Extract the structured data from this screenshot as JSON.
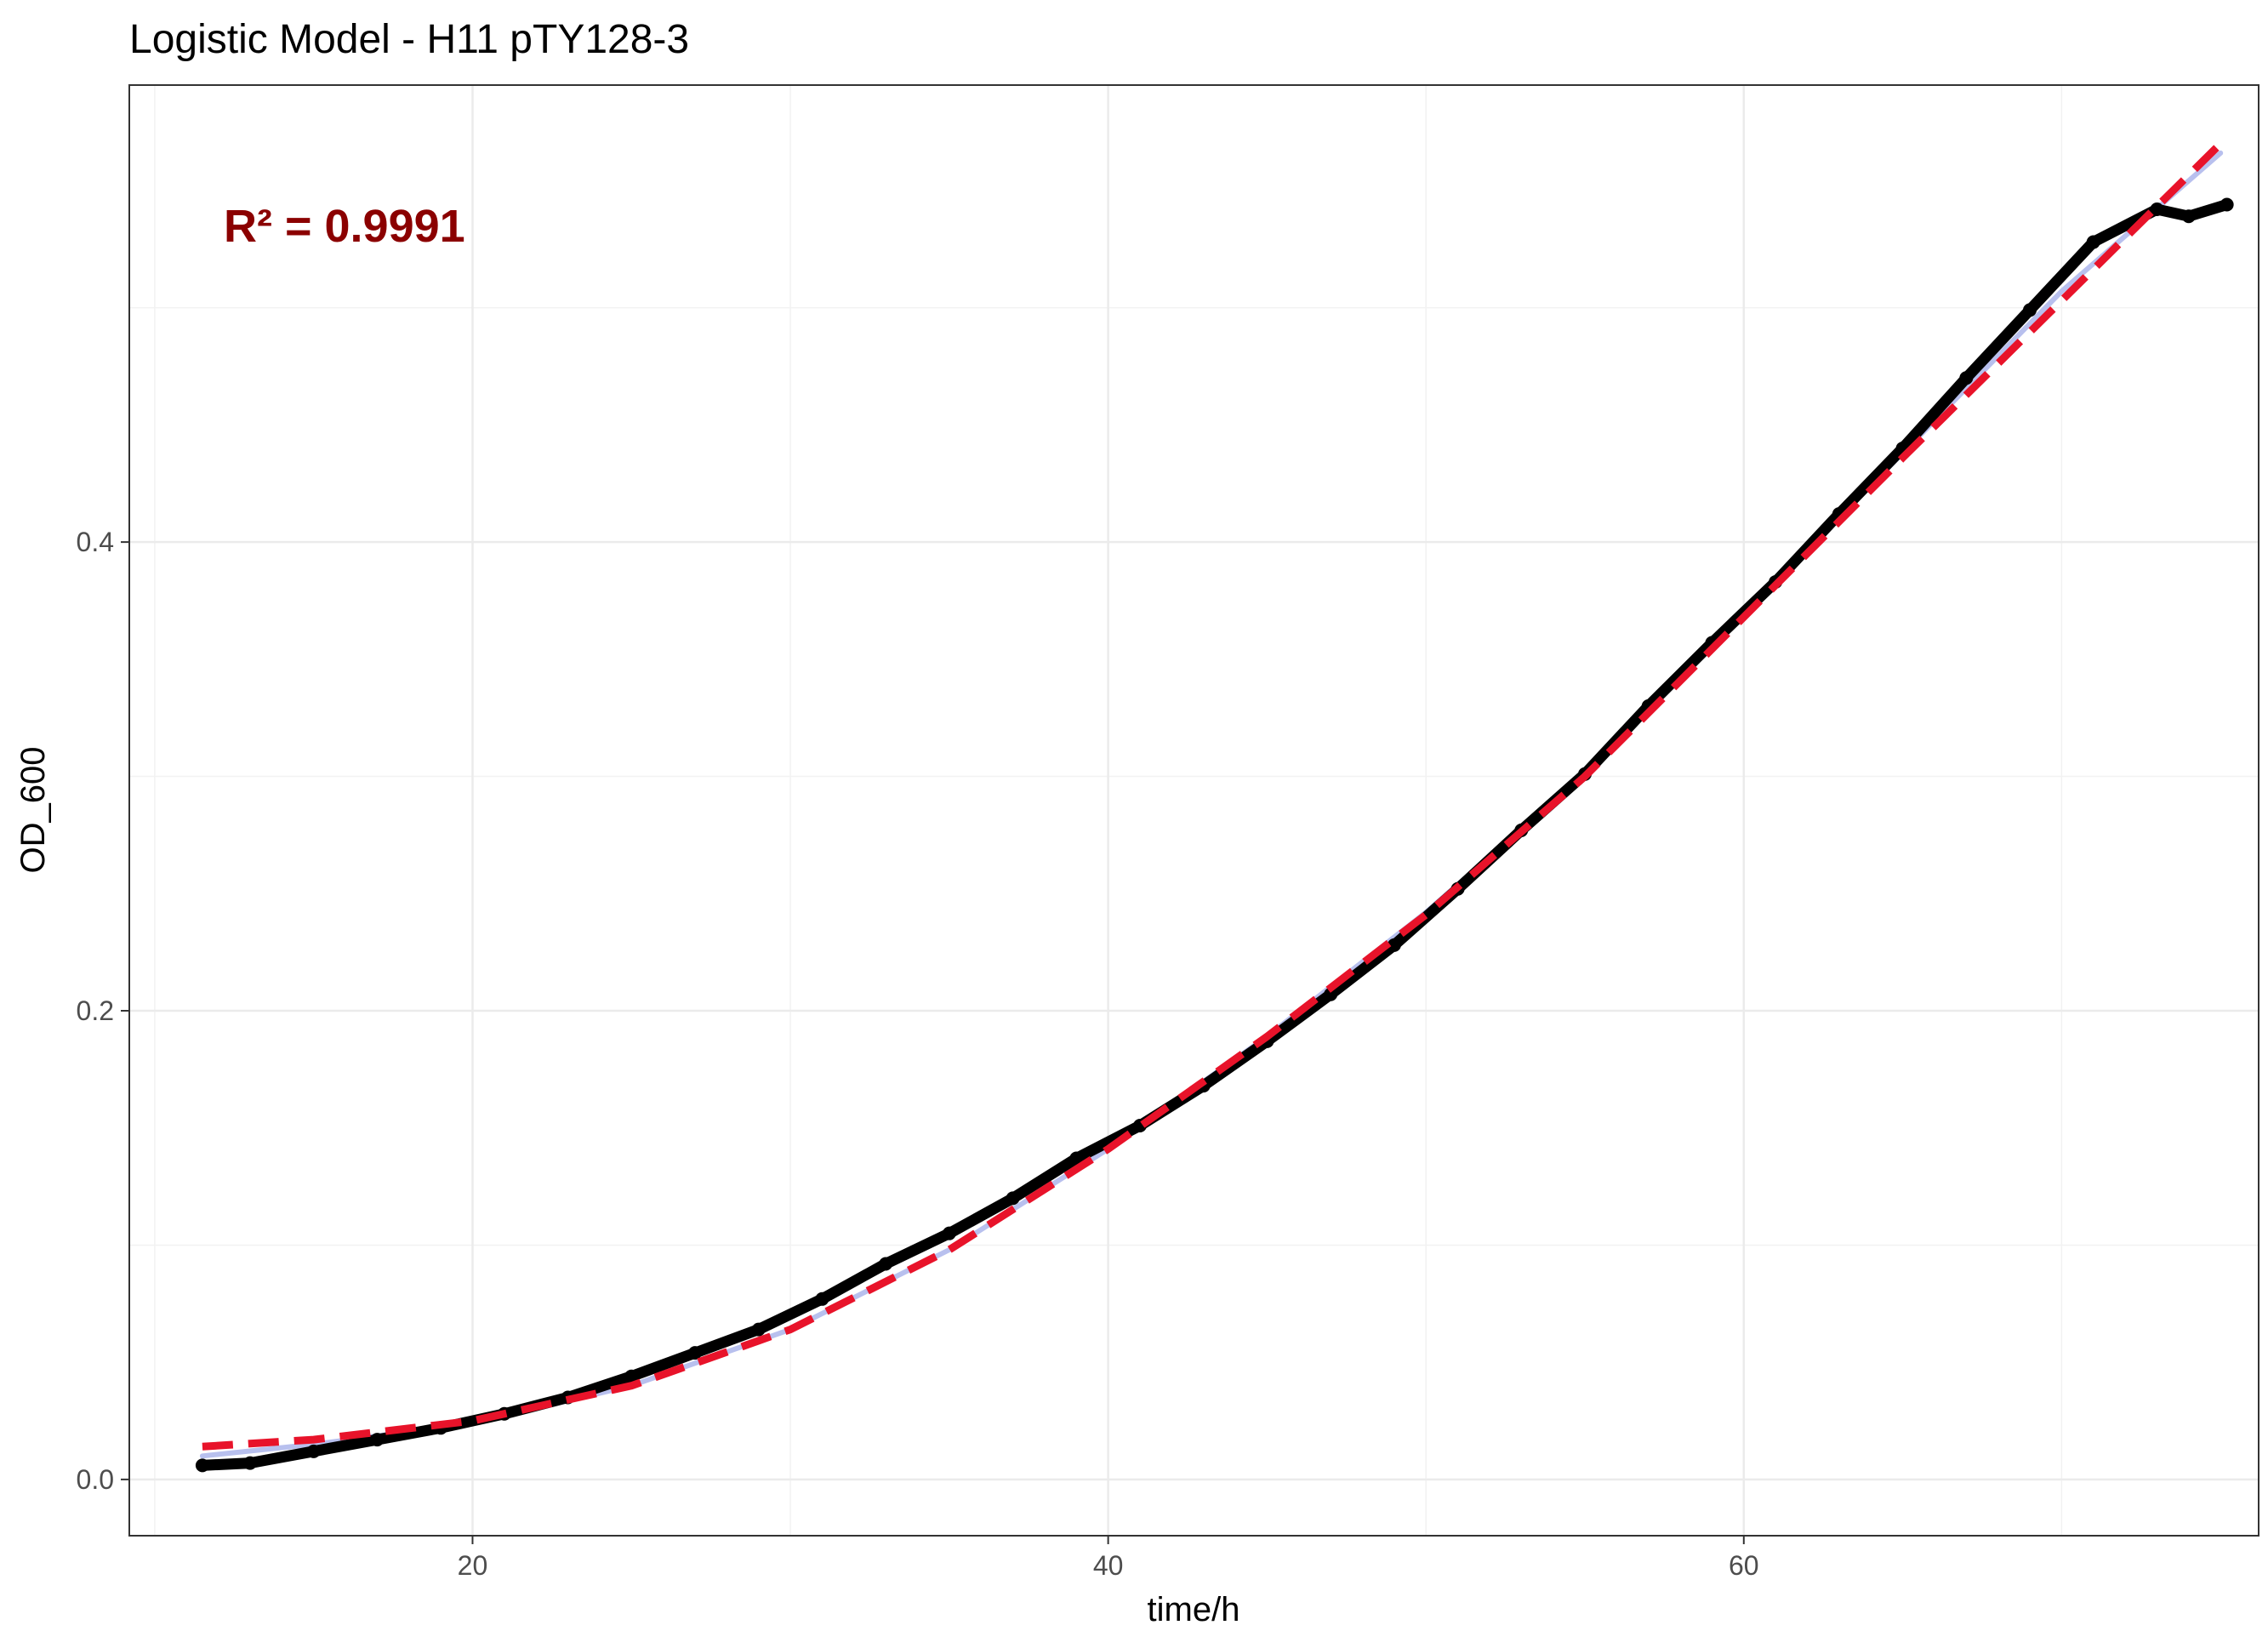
{
  "chart_data": {
    "type": "scatter",
    "title": "Logistic Model -  H11 pTY128-3",
    "xlabel": "time/h",
    "ylabel": "OD_600",
    "xlim": [
      9.2,
      76.2
    ],
    "ylim": [
      -0.024,
      0.595
    ],
    "x_major_ticks": [
      20,
      40,
      60
    ],
    "x_minor_ticks": [
      10,
      30,
      50,
      70
    ],
    "y_major_ticks": [
      0.0,
      0.2,
      0.4
    ],
    "y_minor_ticks": [
      0.1,
      0.3,
      0.5
    ],
    "x_tick_labels": [
      "20",
      "40",
      "60"
    ],
    "y_tick_labels": [
      "0.0",
      "0.2",
      "0.4"
    ],
    "grid": true,
    "legend": "none",
    "annotation": {
      "text": "R² = 0.9991",
      "color": "#8b0000"
    },
    "observed": {
      "color": "#000000",
      "x": [
        11.5,
        13,
        15,
        17,
        19,
        21,
        23,
        25,
        27,
        29,
        31,
        33,
        35,
        37,
        39,
        41,
        43,
        45,
        47,
        49,
        51,
        53,
        55,
        57,
        59,
        61,
        63,
        65,
        67,
        69,
        71,
        73,
        74,
        75.2
      ],
      "y": [
        0.006,
        0.007,
        0.012,
        0.017,
        0.022,
        0.028,
        0.035,
        0.044,
        0.054,
        0.064,
        0.077,
        0.092,
        0.105,
        0.12,
        0.137,
        0.151,
        0.168,
        0.187,
        0.207,
        0.228,
        0.252,
        0.277,
        0.301,
        0.33,
        0.357,
        0.383,
        0.412,
        0.44,
        0.47,
        0.499,
        0.528,
        0.542,
        0.539,
        0.544
      ]
    },
    "fit_logistic": {
      "color": "#e8132a",
      "style": "dashed",
      "x": [
        11.5,
        15,
        20,
        25,
        30,
        35,
        40,
        45,
        50,
        55,
        60,
        65,
        70,
        75
      ],
      "y": [
        0.014,
        0.017,
        0.025,
        0.04,
        0.064,
        0.098,
        0.141,
        0.189,
        0.241,
        0.3,
        0.368,
        0.436,
        0.503,
        0.57
      ]
    },
    "fit_smooth": {
      "color": "#b8c0ee",
      "style": "solid",
      "x": [
        11.5,
        15,
        20,
        25,
        30,
        35,
        40,
        45,
        50,
        55,
        60,
        65,
        70,
        75
      ],
      "y": [
        0.01,
        0.015,
        0.024,
        0.04,
        0.064,
        0.098,
        0.141,
        0.189,
        0.242,
        0.301,
        0.369,
        0.438,
        0.507,
        0.566
      ]
    }
  }
}
